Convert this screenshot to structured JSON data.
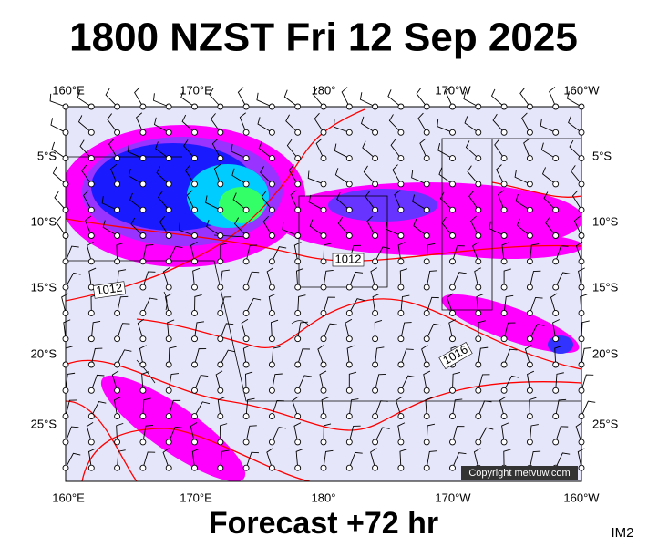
{
  "header": {
    "title": "1800 NZST Fri 12 Sep 2025"
  },
  "map": {
    "lon_labels_top": [
      "160°E",
      "170°E",
      "180°",
      "170°W",
      "160°W"
    ],
    "lon_labels_bottom": [
      "160°E",
      "170°E",
      "180°",
      "170°W",
      "160°W"
    ],
    "lat_labels_left": [
      "5°S",
      "10°S",
      "15°S",
      "20°S",
      "25°S"
    ],
    "lat_labels_right": [
      "5°S",
      "10°S",
      "15°S",
      "20°S",
      "25°S"
    ],
    "isobar_labels": [
      "1012",
      "1012",
      "1016"
    ],
    "copyright": "Copyright metvuw.com"
  },
  "footer": {
    "forecast": "Forecast +72 hr",
    "image_id": "IM2"
  }
}
